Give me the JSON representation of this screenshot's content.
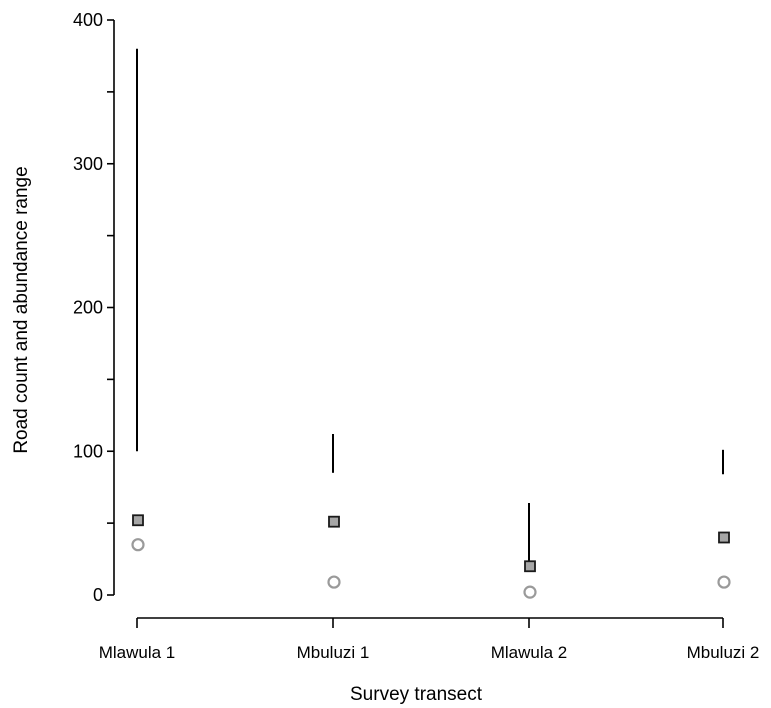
{
  "chart_data": {
    "type": "scatter",
    "title": "",
    "xlabel": "Survey transect",
    "ylabel": "Road count and abundance range",
    "ylim": [
      0,
      400
    ],
    "yticks_major": [
      0,
      100,
      200,
      300,
      400
    ],
    "yticks_minor": [
      50,
      150,
      250,
      350
    ],
    "categories": [
      "Mlawula 1",
      "Mbuluzi 1",
      "Mlawula 2",
      "Mbuluzi 2"
    ],
    "series": [
      {
        "kind": "range",
        "low": [
          100,
          85,
          20,
          84
        ],
        "high": [
          380,
          112,
          64,
          101
        ]
      },
      {
        "kind": "square",
        "values": [
          52,
          51,
          20,
          40
        ]
      },
      {
        "kind": "circle",
        "values": [
          35,
          9,
          2,
          9
        ]
      }
    ],
    "grid": false,
    "legend": "none"
  },
  "colors": {
    "axis": "#000000",
    "square_fill": "#a6a6a6",
    "circle_stroke": "#9a9a9a"
  }
}
